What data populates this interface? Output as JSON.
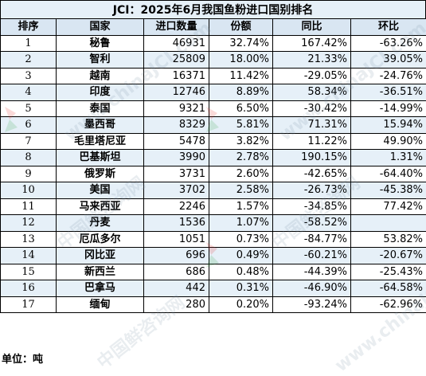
{
  "title": "JCI：2025年6月我国鱼粉进口国别排名",
  "headers": [
    "排序",
    "国家",
    "进口数量",
    "份额",
    "同比",
    "环比"
  ],
  "rows": [
    {
      "rank": "1",
      "country": "秘鲁",
      "qty": "46931",
      "share": "32.74%",
      "yoy": "167.42%",
      "mom": "-63.26%"
    },
    {
      "rank": "2",
      "country": "智利",
      "qty": "25809",
      "share": "18.00%",
      "yoy": "21.33%",
      "mom": "39.05%"
    },
    {
      "rank": "3",
      "country": "越南",
      "qty": "16371",
      "share": "11.42%",
      "yoy": "-29.05%",
      "mom": "-24.76%"
    },
    {
      "rank": "4",
      "country": "印度",
      "qty": "12746",
      "share": "8.89%",
      "yoy": "58.34%",
      "mom": "-36.51%"
    },
    {
      "rank": "5",
      "country": "泰国",
      "qty": "9321",
      "share": "6.50%",
      "yoy": "-30.42%",
      "mom": "-14.99%"
    },
    {
      "rank": "6",
      "country": "墨西哥",
      "qty": "8329",
      "share": "5.81%",
      "yoy": "71.31%",
      "mom": "15.94%"
    },
    {
      "rank": "7",
      "country": "毛里塔尼亚",
      "qty": "5478",
      "share": "3.82%",
      "yoy": "11.22%",
      "mom": "49.90%"
    },
    {
      "rank": "8",
      "country": "巴基斯坦",
      "qty": "3990",
      "share": "2.78%",
      "yoy": "190.15%",
      "mom": "1.31%"
    },
    {
      "rank": "9",
      "country": "俄罗斯",
      "qty": "3731",
      "share": "2.60%",
      "yoy": "-42.65%",
      "mom": "-64.40%"
    },
    {
      "rank": "10",
      "country": "美国",
      "qty": "3702",
      "share": "2.58%",
      "yoy": "-26.73%",
      "mom": "-45.38%"
    },
    {
      "rank": "11",
      "country": "马来西亚",
      "qty": "2246",
      "share": "1.57%",
      "yoy": "-34.85%",
      "mom": "77.42%"
    },
    {
      "rank": "12",
      "country": "丹麦",
      "qty": "1536",
      "share": "1.07%",
      "yoy": "-58.52%",
      "mom": ""
    },
    {
      "rank": "13",
      "country": "厄瓜多尔",
      "qty": "1051",
      "share": "0.73%",
      "yoy": "-84.77%",
      "mom": "53.82%"
    },
    {
      "rank": "14",
      "country": "冈比亚",
      "qty": "696",
      "share": "0.49%",
      "yoy": "-60.21%",
      "mom": "-20.67%"
    },
    {
      "rank": "15",
      "country": "新西兰",
      "qty": "686",
      "share": "0.48%",
      "yoy": "-44.39%",
      "mom": "-25.43%"
    },
    {
      "rank": "16",
      "country": "巴拿马",
      "qty": "442",
      "share": "0.31%",
      "yoy": "-46.90%",
      "mom": "-64.58%"
    },
    {
      "rank": "17",
      "country": "缅甸",
      "qty": "280",
      "share": "0.20%",
      "yoy": "-93.24%",
      "mom": "-62.96%"
    }
  ],
  "footer": "单位：吨",
  "watermark": {
    "text_cn": "中国鲜咨询网",
    "text_en": "www.chinaJCI.com"
  },
  "colors": {
    "header_bg": "#d9e6f2",
    "alt_row_bg": "#e6f0f8",
    "watermark_red": "#e2332a",
    "watermark_green": "#3aa64a"
  }
}
